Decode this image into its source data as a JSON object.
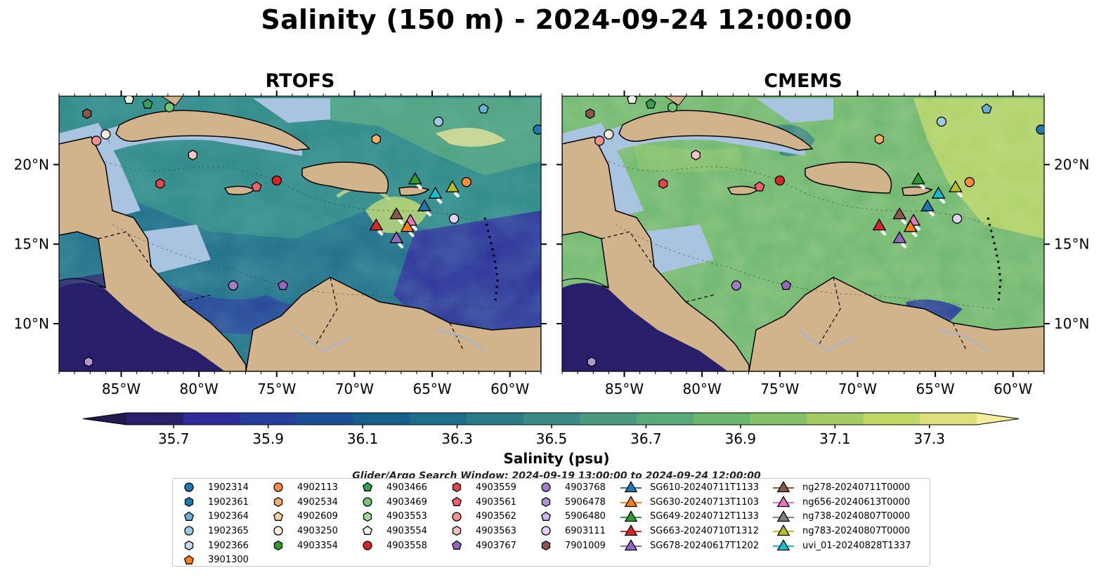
{
  "title": "Salinity (150 m) - 2024-09-24 12:00:00",
  "panels": [
    {
      "title": "RTOFS"
    },
    {
      "title": "CMEMS"
    }
  ],
  "lat_labels": [
    "20°N",
    "15°N",
    "10°N"
  ],
  "lon_labels": [
    "85°W",
    "80°W",
    "75°W",
    "70°W",
    "65°W",
    "60°W"
  ],
  "map_extent": {
    "lon_min": -89,
    "lon_max": -58,
    "lat_min": 7,
    "lat_max": 24.3
  },
  "colorbar": {
    "label": "Salinity (psu)",
    "min": 35.6,
    "max": 37.4,
    "ticks": [
      "35.7",
      "35.9",
      "36.1",
      "36.3",
      "36.5",
      "36.7",
      "36.9",
      "37.1",
      "37.3"
    ],
    "colors": [
      "#281f6a",
      "#2d2a9a",
      "#263f9a",
      "#1b5193",
      "#165e8c",
      "#1f6e88",
      "#2b7b86",
      "#3a8b83",
      "#4a9a7f",
      "#5aa978",
      "#6bb66e",
      "#84c268",
      "#a1cd64",
      "#c0d866",
      "#dfe07c"
    ],
    "extend_low": "#231a4f",
    "extend_high": "#f6ec9b"
  },
  "land_color": "#d2b48c",
  "shelf_color": "#a8c4e0",
  "search_window": "Glider/Argo Search Window: 2024-09-19 13:00:00 to 2024-09-24 12:00:00",
  "legend": [
    [
      {
        "label": "1902314",
        "marker": "circle",
        "color": "#1f77b4"
      },
      {
        "label": "1902361",
        "marker": "hexagon",
        "color": "#1f77b4"
      },
      {
        "label": "1902364",
        "marker": "pentagon",
        "color": "#6baed6"
      },
      {
        "label": "1902365",
        "marker": "circle",
        "color": "#9ecae1"
      },
      {
        "label": "1902366",
        "marker": "hexagon",
        "color": "#c6dbef"
      },
      {
        "label": "3901300",
        "marker": "pentagon",
        "color": "#ff7f0e"
      }
    ],
    [
      {
        "label": "4902113",
        "marker": "circle",
        "color": "#fd8d3c"
      },
      {
        "label": "4902534",
        "marker": "hexagon",
        "color": "#fdae6b"
      },
      {
        "label": "4902609",
        "marker": "pentagon",
        "color": "#fdd0a2"
      },
      {
        "label": "4903250",
        "marker": "circle",
        "color": "#feedde"
      },
      {
        "label": "4903354",
        "marker": "hexagon",
        "color": "#2ca02c"
      }
    ],
    [
      {
        "label": "4903466",
        "marker": "pentagon",
        "color": "#31a354"
      },
      {
        "label": "4903469",
        "marker": "circle",
        "color": "#74c476"
      },
      {
        "label": "4903553",
        "marker": "hexagon",
        "color": "#a1d99b"
      },
      {
        "label": "4903554",
        "marker": "pentagon",
        "color": "#e5f5e0"
      },
      {
        "label": "4903558",
        "marker": "circle",
        "color": "#d62728"
      }
    ],
    [
      {
        "label": "4903559",
        "marker": "hexagon",
        "color": "#e6454a"
      },
      {
        "label": "4903561",
        "marker": "pentagon",
        "color": "#f0606a"
      },
      {
        "label": "4903562",
        "marker": "circle",
        "color": "#f4918e"
      },
      {
        "label": "4903563",
        "marker": "hexagon",
        "color": "#fbc3c1"
      },
      {
        "label": "4903767",
        "marker": "pentagon",
        "color": "#9467bd"
      }
    ],
    [
      {
        "label": "4903768",
        "marker": "circle",
        "color": "#9e7fc4"
      },
      {
        "label": "5906478",
        "marker": "hexagon",
        "color": "#b294d6"
      },
      {
        "label": "5906480",
        "marker": "pentagon",
        "color": "#cdb5ea"
      },
      {
        "label": "6903111",
        "marker": "circle",
        "color": "#e3d2f5"
      },
      {
        "label": "7901009",
        "marker": "hexagon",
        "color": "#8c564b"
      }
    ],
    [
      {
        "label": "SG610-20240711T1133",
        "marker": "triangle",
        "color": "#1f77b4"
      },
      {
        "label": "SG630-20240713T1103",
        "marker": "triangle",
        "color": "#ff7f0e"
      },
      {
        "label": "SG649-20240712T1133",
        "marker": "triangle",
        "color": "#2ca02c"
      },
      {
        "label": "SG663-20240710T1312",
        "marker": "triangle",
        "color": "#d62728"
      },
      {
        "label": "SG678-20240617T1202",
        "marker": "triangle",
        "color": "#9467bd"
      }
    ],
    [
      {
        "label": "ng278-20240711T0000",
        "marker": "triangle",
        "color": "#8c564b"
      },
      {
        "label": "ng656-20240613T0000",
        "marker": "triangle",
        "color": "#e377c2"
      },
      {
        "label": "ng738-20240807T0000",
        "marker": "triangle",
        "color": "#7f7f7f"
      },
      {
        "label": "ng783-20240807T0000",
        "marker": "triangle",
        "color": "#bcbd22"
      },
      {
        "label": "uvi_01-20240828T1337",
        "marker": "triangle",
        "color": "#17becf"
      }
    ]
  ],
  "floats": [
    {
      "lon": -58.2,
      "lat": 22.2,
      "marker": "circle",
      "color": "#1f77b4"
    },
    {
      "lon": -61.7,
      "lat": 23.5,
      "marker": "pentagon",
      "color": "#6baed6"
    },
    {
      "lon": -64.6,
      "lat": 22.7,
      "marker": "circle",
      "color": "#9ecae1"
    },
    {
      "lon": -68.6,
      "lat": 21.6,
      "marker": "hexagon",
      "color": "#fdae6b"
    },
    {
      "lon": -62.8,
      "lat": 18.9,
      "marker": "circle",
      "color": "#fd8d3c"
    },
    {
      "lon": -86.0,
      "lat": 21.9,
      "marker": "circle",
      "color": "#feedde"
    },
    {
      "lon": -86.6,
      "lat": 21.5,
      "marker": "circle",
      "color": "#f4918e"
    },
    {
      "lon": -87.2,
      "lat": 23.2,
      "marker": "hexagon",
      "color": "#8c564b"
    },
    {
      "lon": -81.9,
      "lat": 23.6,
      "marker": "circle",
      "color": "#74c476"
    },
    {
      "lon": -83.3,
      "lat": 23.8,
      "marker": "pentagon",
      "color": "#31a354"
    },
    {
      "lon": -84.5,
      "lat": 24.1,
      "marker": "pentagon",
      "color": "#e5f5e0"
    },
    {
      "lon": -80.4,
      "lat": 20.6,
      "marker": "hexagon",
      "color": "#fbc3c1"
    },
    {
      "lon": -82.5,
      "lat": 18.8,
      "marker": "hexagon",
      "color": "#e6454a"
    },
    {
      "lon": -76.3,
      "lat": 18.6,
      "marker": "pentagon",
      "color": "#f0606a"
    },
    {
      "lon": -75.0,
      "lat": 19.0,
      "marker": "circle",
      "color": "#d62728"
    },
    {
      "lon": -77.8,
      "lat": 12.4,
      "marker": "circle",
      "color": "#9e7fc4"
    },
    {
      "lon": -74.6,
      "lat": 12.4,
      "marker": "pentagon",
      "color": "#9467bd"
    },
    {
      "lon": -63.6,
      "lat": 16.6,
      "marker": "circle",
      "color": "#e3d2f5"
    },
    {
      "lon": -87.1,
      "lat": 7.6,
      "marker": "hexagon",
      "color": "#b294d6"
    }
  ],
  "gliders": [
    {
      "lon": -66.1,
      "lat": 19.1,
      "color": "#2ca02c"
    },
    {
      "lon": -63.7,
      "lat": 18.6,
      "color": "#bcbd22"
    },
    {
      "lon": -64.8,
      "lat": 18.2,
      "color": "#17becf"
    },
    {
      "lon": -65.5,
      "lat": 17.4,
      "color": "#1f77b4"
    },
    {
      "lon": -67.3,
      "lat": 16.9,
      "color": "#8c564b"
    },
    {
      "lon": -66.4,
      "lat": 16.5,
      "color": "#e377c2"
    },
    {
      "lon": -68.6,
      "lat": 16.2,
      "color": "#d62728"
    },
    {
      "lon": -66.6,
      "lat": 16.1,
      "color": "#ff7f0e"
    },
    {
      "lon": -67.3,
      "lat": 15.4,
      "color": "#9467bd"
    }
  ]
}
